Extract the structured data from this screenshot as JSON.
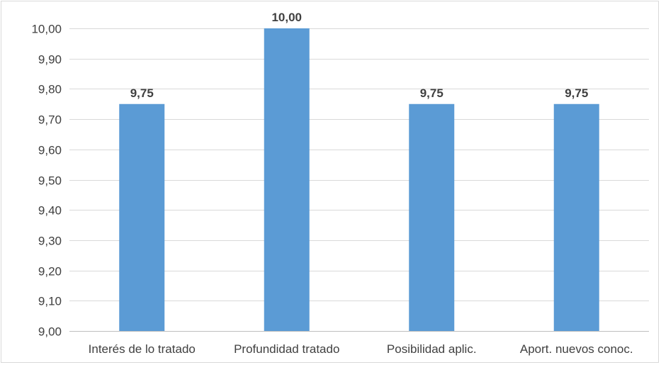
{
  "chart_data": {
    "type": "bar",
    "title": "",
    "xlabel": "",
    "ylabel": "",
    "categories": [
      "Interés de lo tratado",
      "Profundidad tratado",
      "Posibilidad aplic.",
      "Aport. nuevos conoc."
    ],
    "values": [
      9.75,
      10.0,
      9.75,
      9.75
    ],
    "data_labels": [
      "9,75",
      "10,00",
      "9,75",
      "9,75"
    ],
    "ylim": [
      9.0,
      10.0
    ],
    "yticks": [
      9.0,
      9.1,
      9.2,
      9.3,
      9.4,
      9.5,
      9.6,
      9.7,
      9.8,
      9.9,
      10.0
    ],
    "ytick_labels": [
      "9,00",
      "9,10",
      "9,20",
      "9,30",
      "9,40",
      "9,50",
      "9,60",
      "9,70",
      "9,80",
      "9,90",
      "10,00"
    ],
    "grid": true,
    "legend": "none",
    "colors": {
      "bar": "#5b9bd5",
      "grid": "#d9d9d9",
      "axis": "#bfbfbf",
      "text": "#404040"
    }
  }
}
